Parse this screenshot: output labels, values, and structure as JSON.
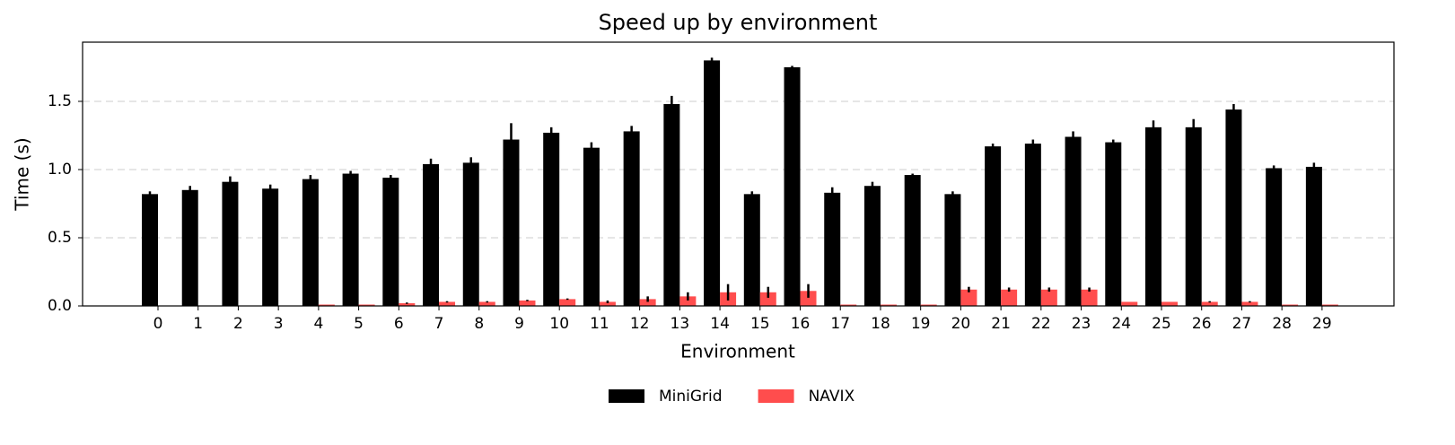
{
  "chart_data": {
    "type": "bar",
    "title": "Speed up by environment",
    "x_label": "Environment",
    "y_label": "Time (s)",
    "categories": [
      "0",
      "1",
      "2",
      "3",
      "4",
      "5",
      "6",
      "7",
      "8",
      "9",
      "10",
      "11",
      "12",
      "13",
      "14",
      "15",
      "16",
      "17",
      "18",
      "19",
      "20",
      "21",
      "22",
      "23",
      "24",
      "25",
      "26",
      "27",
      "28",
      "29"
    ],
    "series": [
      {
        "name": "MiniGrid",
        "color": "#000000",
        "values": [
          0.82,
          0.85,
          0.91,
          0.86,
          0.93,
          0.97,
          0.94,
          1.04,
          1.05,
          1.22,
          1.27,
          1.16,
          1.28,
          1.48,
          1.8,
          0.82,
          1.75,
          0.83,
          0.88,
          0.96,
          0.82,
          1.17,
          1.19,
          1.24,
          1.2,
          1.31,
          1.31,
          1.44,
          1.01,
          1.02
        ],
        "errors": [
          0.02,
          0.03,
          0.04,
          0.03,
          0.03,
          0.02,
          0.02,
          0.04,
          0.04,
          0.12,
          0.04,
          0.04,
          0.04,
          0.06,
          0.02,
          0.02,
          0.01,
          0.04,
          0.03,
          0.01,
          0.02,
          0.02,
          0.03,
          0.04,
          0.02,
          0.05,
          0.06,
          0.04,
          0.02,
          0.03
        ]
      },
      {
        "name": "NAVIX",
        "color": "#ff4d4d",
        "values": [
          0,
          0,
          0,
          0,
          0.01,
          0.01,
          0.02,
          0.03,
          0.03,
          0.04,
          0.05,
          0.03,
          0.05,
          0.07,
          0.1,
          0.1,
          0.11,
          0.01,
          0.01,
          0.01,
          0.12,
          0.12,
          0.12,
          0.12,
          0.03,
          0.03,
          0.03,
          0.03,
          0.01,
          0.01
        ],
        "errors": [
          0,
          0,
          0,
          0,
          0,
          0,
          0.005,
          0.005,
          0.005,
          0.005,
          0.005,
          0.01,
          0.02,
          0.03,
          0.06,
          0.04,
          0.05,
          0,
          0,
          0,
          0.02,
          0.015,
          0.015,
          0.015,
          0,
          0,
          0.005,
          0.005,
          0,
          0
        ]
      }
    ],
    "ylim": [
      0,
      1.934
    ],
    "yticks": [
      {
        "value": 0,
        "label": "0.0"
      },
      0.5,
      {
        "value": 1,
        "label": "1.0"
      },
      1.5
    ],
    "grid": true,
    "legend": "bottom"
  }
}
